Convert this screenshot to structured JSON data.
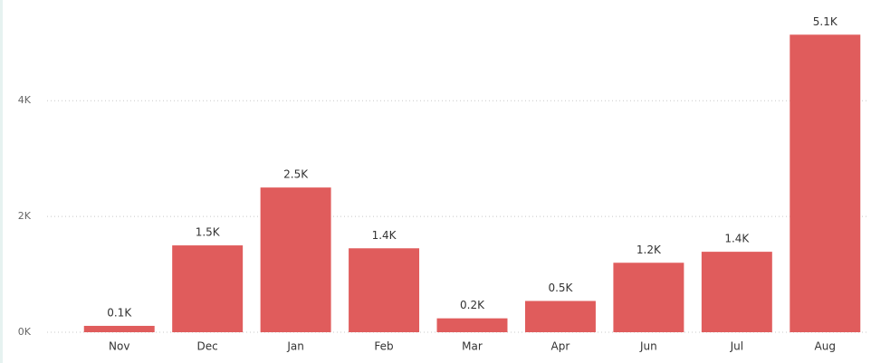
{
  "chart_data": {
    "type": "bar",
    "categories": [
      "Nov",
      "Dec",
      "Jan",
      "Feb",
      "Mar",
      "Apr",
      "Jun",
      "Jul",
      "Aug"
    ],
    "values": [
      110,
      1500,
      2500,
      1450,
      240,
      540,
      1200,
      1390,
      5140
    ],
    "value_labels": [
      "0.1K",
      "1.5K",
      "2.5K",
      "1.4K",
      "0.2K",
      "0.5K",
      "1.2K",
      "1.4K",
      "5.1K"
    ],
    "color": "#e05c5c",
    "ylim": [
      0,
      5270
    ],
    "yticks": [
      {
        "value": 0,
        "label": "0K"
      },
      {
        "value": 2000,
        "label": "2K"
      },
      {
        "value": 4000,
        "label": "4K"
      }
    ],
    "grid": true
  }
}
